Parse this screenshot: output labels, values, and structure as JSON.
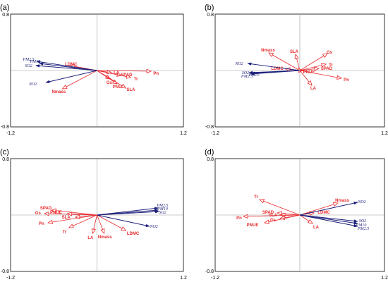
{
  "colors": {
    "trait": "#e8282b",
    "pollutant": "#1c1f7a"
  },
  "chart_data": [
    {
      "type": "scatter",
      "panel_label": "(a)",
      "xlim": [
        -1.2,
        1.2
      ],
      "ylim": [
        -0.8,
        0.8
      ],
      "tick_labels": {
        "xmin": "-1.2",
        "xmax": "1.2",
        "ymin": "-0.8",
        "ymax": "0.8"
      },
      "arrows": [
        {
          "name": "PM2.5",
          "group": "pollutant",
          "x": -0.84,
          "y": 0.13,
          "lx": -0.95,
          "ly": 0.16
        },
        {
          "name": "PM10",
          "group": "pollutant",
          "x": -0.8,
          "y": 0.1,
          "lx": -0.86,
          "ly": 0.13
        },
        {
          "name": "SO2",
          "group": "pollutant",
          "x": -0.85,
          "y": 0.07,
          "lx": -0.95,
          "ly": 0.07
        },
        {
          "name": "NO2",
          "group": "pollutant",
          "x": -0.71,
          "y": -0.17,
          "lx": -0.89,
          "ly": -0.19
        },
        {
          "name": "LDMC",
          "group": "trait",
          "x": -0.37,
          "y": 0.07,
          "lx": -0.36,
          "ly": 0.09
        },
        {
          "name": "Nmass",
          "group": "trait",
          "x": -0.48,
          "y": -0.26,
          "lx": -0.53,
          "ly": -0.3
        },
        {
          "name": "LA",
          "group": "trait",
          "x": 0.2,
          "y": -0.03,
          "lx": 0.27,
          "ly": -0.03
        },
        {
          "name": "SPAD",
          "group": "trait",
          "x": 0.34,
          "y": -0.07,
          "lx": 0.41,
          "ly": -0.06
        },
        {
          "name": "Pn",
          "group": "trait",
          "x": 0.75,
          "y": -0.01,
          "lx": 0.82,
          "ly": -0.04
        },
        {
          "name": "Gs",
          "group": "trait",
          "x": 0.18,
          "y": -0.12,
          "lx": 0.17,
          "ly": -0.17
        },
        {
          "name": "Tr",
          "group": "trait",
          "x": 0.47,
          "y": -0.1,
          "lx": 0.54,
          "ly": -0.12
        },
        {
          "name": "PNUE",
          "group": "trait",
          "x": 0.28,
          "y": -0.19,
          "lx": 0.3,
          "ly": -0.23
        },
        {
          "name": "SLA",
          "group": "trait",
          "x": 0.4,
          "y": -0.25,
          "lx": 0.47,
          "ly": -0.27
        }
      ]
    },
    {
      "type": "scatter",
      "panel_label": "(b)",
      "xlim": [
        -1.2,
        1.2
      ],
      "ylim": [
        -0.8,
        0.8
      ],
      "tick_labels": {
        "xmin": "-1.2",
        "xmax": "1.2",
        "ymin": "-0.8",
        "ymax": "0.8"
      },
      "arrows": [
        {
          "name": "NO2",
          "group": "pollutant",
          "x": -0.74,
          "y": 0.1,
          "lx": -0.86,
          "ly": 0.1
        },
        {
          "name": "SO2",
          "group": "pollutant",
          "x": -0.72,
          "y": -0.03,
          "lx": -0.77,
          "ly": -0.03
        },
        {
          "name": "PM10",
          "group": "pollutant",
          "x": -0.69,
          "y": -0.04,
          "lx": -0.65,
          "ly": -0.06
        },
        {
          "name": "PM2.5",
          "group": "pollutant",
          "x": -0.7,
          "y": -0.05,
          "lx": -0.75,
          "ly": -0.08
        },
        {
          "name": "Nmass",
          "group": "trait",
          "x": -0.44,
          "y": 0.25,
          "lx": -0.45,
          "ly": 0.29
        },
        {
          "name": "SLA",
          "group": "trait",
          "x": -0.06,
          "y": 0.23,
          "lx": -0.08,
          "ly": 0.27
        },
        {
          "name": "LDMC",
          "group": "trait",
          "x": -0.2,
          "y": 0.02,
          "lx": -0.32,
          "ly": 0.03
        },
        {
          "name": "PNUE",
          "group": "trait",
          "x": 0.04,
          "y": 0.0,
          "lx": 0.13,
          "ly": -0.02
        },
        {
          "name": "Gs",
          "group": "trait",
          "x": 0.39,
          "y": 0.24,
          "lx": 0.42,
          "ly": 0.26
        },
        {
          "name": "Tr",
          "group": "trait",
          "x": 0.37,
          "y": 0.09,
          "lx": 0.44,
          "ly": 0.08
        },
        {
          "name": "SPAD",
          "group": "trait",
          "x": 0.27,
          "y": 0.03,
          "lx": 0.38,
          "ly": 0.03
        },
        {
          "name": "LA",
          "group": "trait",
          "x": 0.17,
          "y": -0.21,
          "lx": 0.19,
          "ly": -0.25
        },
        {
          "name": "Pn",
          "group": "trait",
          "x": 0.59,
          "y": -0.11,
          "lx": 0.66,
          "ly": -0.13
        }
      ]
    },
    {
      "type": "scatter",
      "panel_label": "(c)",
      "xlim": [
        -1.2,
        1.2
      ],
      "ylim": [
        -0.8,
        0.8
      ],
      "tick_labels": {
        "xmin": "-1.2",
        "xmax": "1.2",
        "ymin": "-0.8",
        "ymax": "0.8"
      },
      "arrows": [
        {
          "name": "PM2.5",
          "group": "pollutant",
          "x": 0.85,
          "y": 0.1,
          "lx": 0.91,
          "ly": 0.14
        },
        {
          "name": "PM10",
          "group": "pollutant",
          "x": 0.85,
          "y": 0.07,
          "lx": 0.91,
          "ly": 0.09
        },
        {
          "name": "SO2",
          "group": "pollutant",
          "x": 0.86,
          "y": 0.05,
          "lx": 0.91,
          "ly": 0.04
        },
        {
          "name": "NO2",
          "group": "pollutant",
          "x": 0.73,
          "y": -0.16,
          "lx": 0.79,
          "ly": -0.16
        },
        {
          "name": "SPAD",
          "group": "trait",
          "x": -0.63,
          "y": 0.07,
          "lx": -0.71,
          "ly": 0.1
        },
        {
          "name": "Gs",
          "group": "trait",
          "x": -0.73,
          "y": 0.02,
          "lx": -0.82,
          "ly": 0.03
        },
        {
          "name": "PNUE",
          "group": "trait",
          "x": -0.41,
          "y": 0.02,
          "lx": -0.57,
          "ly": 0.04
        },
        {
          "name": "SLA",
          "group": "trait",
          "x": -0.3,
          "y": -0.03,
          "lx": -0.43,
          "ly": -0.03
        },
        {
          "name": "Pn",
          "group": "trait",
          "x": -0.68,
          "y": -0.11,
          "lx": -0.77,
          "ly": -0.12
        },
        {
          "name": "Tr",
          "group": "trait",
          "x": -0.39,
          "y": -0.18,
          "lx": -0.45,
          "ly": -0.24
        },
        {
          "name": "LA",
          "group": "trait",
          "x": -0.06,
          "y": -0.26,
          "lx": -0.09,
          "ly": -0.32
        },
        {
          "name": "Nmass",
          "group": "trait",
          "x": 0.1,
          "y": -0.26,
          "lx": 0.11,
          "ly": -0.31
        },
        {
          "name": "LDMC",
          "group": "trait",
          "x": 0.4,
          "y": -0.22,
          "lx": 0.5,
          "ly": -0.26
        }
      ]
    },
    {
      "type": "scatter",
      "panel_label": "(d)",
      "xlim": [
        -1.2,
        1.2
      ],
      "ylim": [
        -0.8,
        0.8
      ],
      "tick_labels": {
        "xmin": "-1.2",
        "xmax": "1.2",
        "ymin": "-0.8",
        "ymax": "0.8"
      },
      "arrows": [
        {
          "name": "NO2",
          "group": "pollutant",
          "x": 0.82,
          "y": 0.18,
          "lx": 0.88,
          "ly": 0.19
        },
        {
          "name": "SO2",
          "group": "pollutant",
          "x": 0.82,
          "y": -0.09,
          "lx": 0.89,
          "ly": -0.08
        },
        {
          "name": "PM10",
          "group": "pollutant",
          "x": 0.82,
          "y": -0.12,
          "lx": 0.87,
          "ly": -0.14
        },
        {
          "name": "PM2.5",
          "group": "pollutant",
          "x": 0.82,
          "y": -0.16,
          "lx": 0.9,
          "ly": -0.19
        },
        {
          "name": "Nmass",
          "group": "trait",
          "x": 0.54,
          "y": 0.17,
          "lx": 0.6,
          "ly": 0.21
        },
        {
          "name": "LDMC",
          "group": "trait",
          "x": 0.2,
          "y": 0.03,
          "lx": 0.34,
          "ly": 0.04
        },
        {
          "name": "LA",
          "group": "trait",
          "x": 0.18,
          "y": -0.12,
          "lx": 0.23,
          "ly": -0.17
        },
        {
          "name": "Tr",
          "group": "trait",
          "x": -0.57,
          "y": 0.22,
          "lx": -0.62,
          "ly": 0.26
        },
        {
          "name": "SPAD",
          "group": "trait",
          "x": -0.32,
          "y": 0.03,
          "lx": -0.45,
          "ly": 0.04
        },
        {
          "name": "SLA",
          "group": "trait",
          "x": -0.27,
          "y": 0.0,
          "lx": -0.38,
          "ly": 0.0
        },
        {
          "name": "Gs",
          "group": "trait",
          "x": -0.28,
          "y": -0.05,
          "lx": -0.38,
          "ly": -0.07
        },
        {
          "name": "Pn",
          "group": "trait",
          "x": -0.8,
          "y": -0.02,
          "lx": -0.86,
          "ly": -0.04
        },
        {
          "name": "PNUE",
          "group": "trait",
          "x": -0.5,
          "y": -0.11,
          "lx": -0.67,
          "ly": -0.14
        }
      ]
    }
  ]
}
